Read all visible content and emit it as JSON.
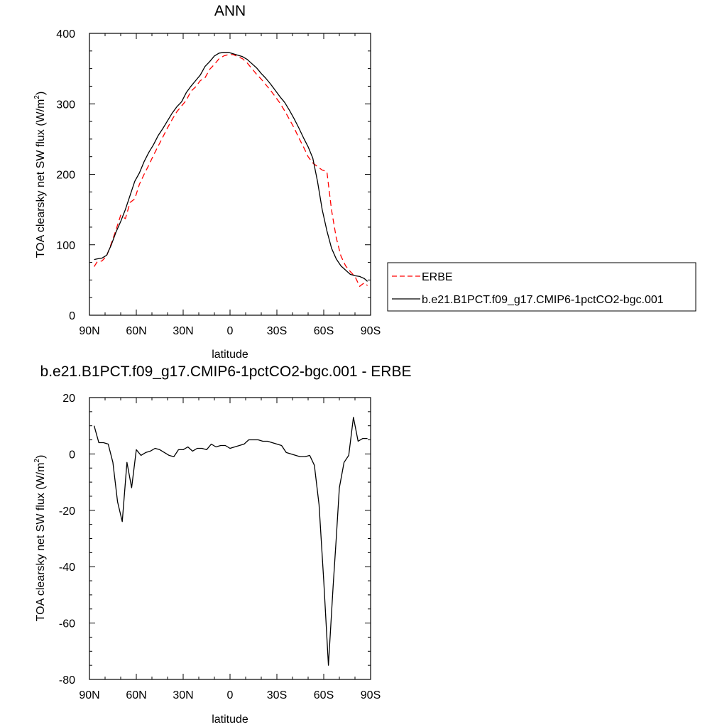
{
  "chart_data": [
    {
      "type": "line",
      "title": "ANN",
      "xlabel": "latitude",
      "ylabel": "TOA clearsky net SW flux (W/m",
      "ylabel_sup": "2",
      "ylabel_close": ")",
      "xlim": [
        90,
        -90
      ],
      "ylim": [
        0,
        400
      ],
      "xticks": [
        90,
        60,
        30,
        0,
        -30,
        -60,
        -90
      ],
      "xticklabels": [
        "90N",
        "60N",
        "30N",
        "0",
        "30S",
        "60S",
        "90S"
      ],
      "yticks": [
        0,
        100,
        200,
        300,
        400
      ],
      "yticklabels": [
        "0",
        "100",
        "200",
        "300",
        "400"
      ],
      "legend_position": "right",
      "series": [
        {
          "name": "ERBE",
          "color": "#ff0000",
          "style": "dashed",
          "x": [
            87,
            85,
            82,
            79,
            76,
            73,
            70,
            67,
            64,
            61,
            58,
            55,
            52,
            49,
            46,
            43,
            40,
            37,
            34,
            31,
            28,
            25,
            22,
            19,
            16,
            13,
            10,
            7,
            4,
            1,
            -2,
            -5,
            -8,
            -11,
            -14,
            -17,
            -20,
            -23,
            -26,
            -29,
            -32,
            -35,
            -38,
            -41,
            -44,
            -47,
            -50,
            -53,
            -56,
            -59,
            -62,
            -65,
            -68,
            -71,
            -74,
            -77,
            -80,
            -83,
            -86,
            -88
          ],
          "values": [
            69,
            76,
            77,
            84,
            102,
            121,
            142,
            137,
            160,
            165,
            186,
            200,
            213,
            227,
            240,
            253,
            266,
            278,
            289,
            297,
            305,
            318,
            324,
            333,
            337,
            349,
            356,
            364,
            368,
            370,
            370,
            367,
            364,
            358,
            350,
            342,
            335,
            327,
            319,
            310,
            301,
            290,
            278,
            266,
            252,
            239,
            225,
            216,
            211,
            206,
            204,
            149,
            110,
            84,
            70,
            62,
            55,
            41,
            46,
            42
          ]
        },
        {
          "name": "b.e21.B1PCT.f09_g17.CMIP6-1pctCO2-bgc.001",
          "color": "#000000",
          "style": "solid",
          "x": [
            87,
            85,
            82,
            79,
            76,
            73,
            70,
            67,
            64,
            61,
            58,
            55,
            52,
            49,
            46,
            43,
            40,
            37,
            34,
            31,
            28,
            25,
            22,
            19,
            16,
            13,
            10,
            7,
            4,
            1,
            -2,
            -5,
            -8,
            -11,
            -14,
            -17,
            -20,
            -23,
            -26,
            -29,
            -32,
            -35,
            -38,
            -41,
            -44,
            -47,
            -50,
            -53,
            -56,
            -59,
            -62,
            -65,
            -68,
            -71,
            -74,
            -77,
            -80,
            -83,
            -86,
            -88
          ],
          "values": [
            79,
            80,
            81,
            85,
            100,
            118,
            133,
            150,
            170,
            190,
            202,
            218,
            231,
            242,
            255,
            265,
            276,
            287,
            296,
            303,
            316,
            325,
            333,
            341,
            353,
            360,
            368,
            372,
            373,
            373,
            371,
            369,
            367,
            363,
            357,
            351,
            343,
            336,
            328,
            319,
            310,
            302,
            291,
            279,
            266,
            252,
            239,
            223,
            190,
            150,
            120,
            95,
            80,
            70,
            64,
            58,
            56,
            55,
            52,
            48
          ]
        }
      ]
    },
    {
      "type": "line",
      "title": "b.e21.B1PCT.f09_g17.CMIP6-1pctCO2-bgc.001 - ERBE",
      "xlabel": "latitude",
      "ylabel": "TOA clearsky net SW flux (W/m",
      "ylabel_sup": "2",
      "ylabel_close": ")",
      "xlim": [
        90,
        -90
      ],
      "ylim": [
        -80,
        20
      ],
      "xticks": [
        90,
        60,
        30,
        0,
        -30,
        -60,
        -90
      ],
      "xticklabels": [
        "90N",
        "60N",
        "30N",
        "0",
        "30S",
        "60S",
        "90S"
      ],
      "yticks": [
        -80,
        -60,
        -40,
        -20,
        0,
        20
      ],
      "yticklabels": [
        "-80",
        "-60",
        "-40",
        "-20",
        "0",
        "20"
      ],
      "series": [
        {
          "color": "#000000",
          "style": "solid",
          "x": [
            87,
            84,
            81,
            78,
            75,
            72,
            69,
            66,
            63,
            60,
            57,
            54,
            51,
            48,
            45,
            42,
            39,
            36,
            33,
            30,
            27,
            24,
            21,
            18,
            15,
            12,
            9,
            6,
            3,
            0,
            -3,
            -6,
            -9,
            -12,
            -15,
            -18,
            -21,
            -24,
            -27,
            -30,
            -33,
            -36,
            -39,
            -42,
            -45,
            -48,
            -51,
            -54,
            -57,
            -60,
            -63,
            -66,
            -68,
            -70,
            -73,
            -76,
            -79,
            -82,
            -85,
            -88
          ],
          "values": [
            10,
            4,
            4,
            3.5,
            -3,
            -17,
            -24,
            -3,
            -12,
            1.5,
            -0.5,
            0.5,
            1,
            2,
            1.5,
            0.5,
            -0.5,
            -1,
            1.5,
            1.5,
            2.5,
            1,
            2,
            2,
            1.5,
            3.5,
            2.5,
            3,
            3,
            2,
            2.5,
            3,
            3.5,
            5,
            5,
            5,
            4.5,
            4.5,
            4,
            3.5,
            3,
            0.5,
            0,
            -0.5,
            -1,
            -1,
            -0.5,
            -4,
            -18,
            -45,
            -75,
            -47,
            -30,
            -12,
            -3,
            -0.5,
            13,
            4.5,
            5.5,
            5.5
          ]
        }
      ]
    }
  ]
}
